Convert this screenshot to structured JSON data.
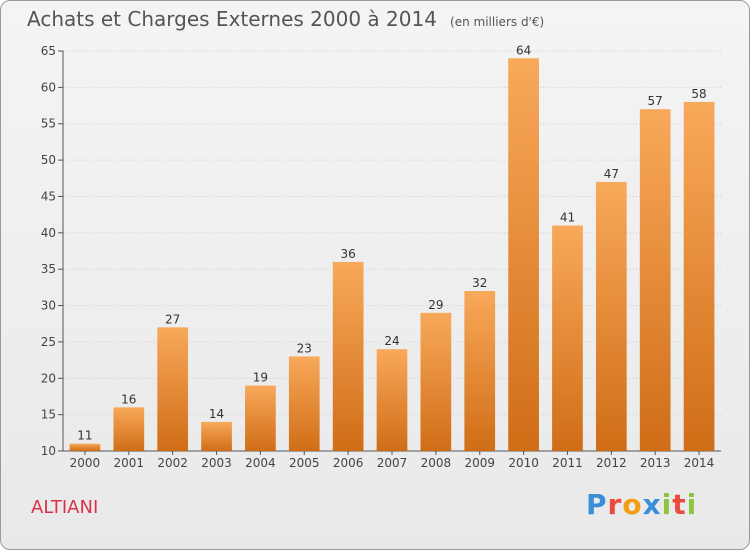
{
  "header": {
    "title": "Achats et Charges Externes 2000 à 2014",
    "subtitle": "(en milliers d'€)"
  },
  "footer": {
    "commune": "ALTIANI",
    "logo_text": "Proxiti",
    "logo_letters": [
      {
        "char": "P",
        "color": "#3a8fd6"
      },
      {
        "char": "r",
        "color": "#e94b3c"
      },
      {
        "char": "o",
        "color": "#f39c12"
      },
      {
        "char": "x",
        "color": "#3a8fd6"
      },
      {
        "char": "i",
        "color": "#8cc63f"
      },
      {
        "char": "t",
        "color": "#e94b3c"
      },
      {
        "char": "i",
        "color": "#8cc63f"
      }
    ]
  },
  "colors": {
    "bar_top": "#f8a95a",
    "bar_bottom": "#d06d17",
    "commune": "#d9334a",
    "grid": "#cfcfcf"
  },
  "chart_data": {
    "type": "bar",
    "categories": [
      "2000",
      "2001",
      "2002",
      "2003",
      "2004",
      "2005",
      "2006",
      "2007",
      "2008",
      "2009",
      "2010",
      "2011",
      "2012",
      "2013",
      "2014"
    ],
    "values": [
      11,
      16,
      27,
      14,
      19,
      23,
      36,
      24,
      29,
      32,
      64,
      41,
      47,
      57,
      58
    ],
    "ylim": [
      10,
      65
    ],
    "yticks": [
      10,
      15,
      20,
      25,
      30,
      35,
      40,
      45,
      50,
      55,
      60,
      65
    ],
    "grid": true,
    "data_labels": true
  }
}
